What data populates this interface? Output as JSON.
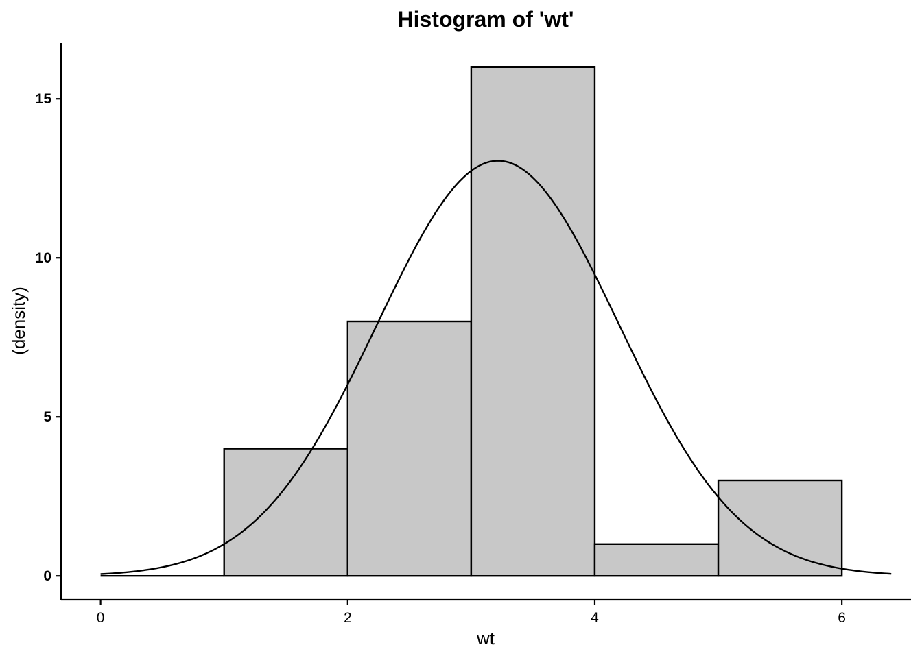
{
  "chart_data": {
    "type": "bar",
    "title": "Histogram of 'wt'",
    "xlabel": "wt",
    "ylabel": "(density)",
    "xlim": [
      -0.32,
      6.56
    ],
    "ylim": [
      -0.75,
      16.75
    ],
    "x_ticks": [
      0,
      2,
      4,
      6
    ],
    "y_ticks": [
      0,
      5,
      10,
      15
    ],
    "grid": false,
    "legend": "none",
    "bars": [
      {
        "x0": 1,
        "x1": 2,
        "value": 4
      },
      {
        "x0": 2,
        "x1": 3,
        "value": 8
      },
      {
        "x0": 3,
        "x1": 4,
        "value": 16
      },
      {
        "x0": 4,
        "x1": 5,
        "value": 1
      },
      {
        "x0": 5,
        "x1": 6,
        "value": 3
      }
    ],
    "baseline": {
      "x0": 0,
      "x1": 1,
      "value": 0
    },
    "density_curve": {
      "type": "normal",
      "mean": 3.217,
      "sd": 0.978,
      "scale": 32,
      "x_range": [
        0,
        6.4
      ]
    },
    "colors": {
      "bar_fill": "#c8c8c8",
      "bar_stroke": "#000000",
      "curve": "#000000",
      "axis": "#000000",
      "background": "#ffffff"
    }
  }
}
